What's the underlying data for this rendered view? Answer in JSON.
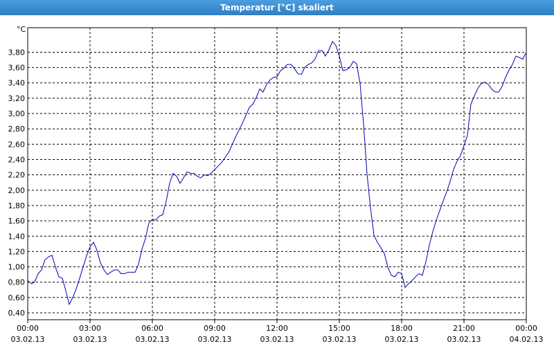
{
  "chart_data": {
    "type": "line",
    "title": "Temperatur [°C] skaliert",
    "y_label": "°C",
    "x": [
      0,
      0.17,
      0.33,
      0.5,
      0.67,
      0.83,
      1.0,
      1.17,
      1.33,
      1.5,
      1.67,
      1.83,
      2.0,
      2.17,
      2.33,
      2.5,
      2.67,
      2.83,
      3.0,
      3.17,
      3.33,
      3.5,
      3.67,
      3.83,
      4.0,
      4.17,
      4.33,
      4.5,
      4.67,
      4.83,
      5.0,
      5.17,
      5.33,
      5.5,
      5.67,
      5.83,
      6.0,
      6.17,
      6.33,
      6.5,
      6.67,
      6.83,
      7.0,
      7.17,
      7.33,
      7.5,
      7.67,
      7.83,
      8.0,
      8.17,
      8.33,
      8.5,
      8.67,
      8.83,
      9.0,
      9.33,
      9.67,
      10.0,
      10.33,
      10.67,
      10.83,
      11.0,
      11.17,
      11.33,
      11.5,
      11.67,
      11.83,
      12.0,
      12.17,
      12.33,
      12.5,
      12.67,
      12.83,
      13.0,
      13.17,
      13.33,
      13.5,
      13.67,
      13.83,
      14.0,
      14.17,
      14.33,
      14.5,
      14.67,
      14.83,
      15.0,
      15.17,
      15.33,
      15.5,
      15.67,
      15.83,
      16.0,
      16.17,
      16.33,
      16.5,
      16.67,
      16.83,
      17.0,
      17.17,
      17.33,
      17.5,
      17.67,
      17.83,
      18.0,
      18.17,
      18.33,
      18.5,
      18.67,
      18.83,
      19.0,
      19.17,
      19.33,
      19.5,
      19.67,
      19.83,
      20.0,
      20.17,
      20.33,
      20.5,
      20.67,
      20.83,
      21.0,
      21.17,
      21.33,
      21.5,
      21.67,
      21.83,
      22.0,
      22.17,
      22.33,
      22.5,
      22.67,
      22.83,
      23.0,
      23.17,
      23.33,
      23.5,
      23.67,
      23.83,
      24.0
    ],
    "series": [
      {
        "color": "#0000b0",
        "values": [
          0.82,
          0.78,
          0.8,
          0.91,
          0.96,
          1.09,
          1.13,
          1.15,
          1.0,
          0.87,
          0.85,
          0.69,
          0.51,
          0.6,
          0.71,
          0.85,
          1.0,
          1.14,
          1.26,
          1.32,
          1.22,
          1.05,
          0.96,
          0.9,
          0.93,
          0.96,
          0.96,
          0.91,
          0.91,
          0.93,
          0.93,
          0.93,
          1.03,
          1.23,
          1.37,
          1.57,
          1.62,
          1.61,
          1.66,
          1.68,
          1.86,
          2.09,
          2.22,
          2.18,
          2.09,
          2.16,
          2.24,
          2.22,
          2.22,
          2.18,
          2.16,
          2.2,
          2.19,
          2.22,
          2.27,
          2.36,
          2.49,
          2.69,
          2.87,
          3.08,
          3.12,
          3.21,
          3.32,
          3.28,
          3.38,
          3.44,
          3.47,
          3.48,
          3.56,
          3.59,
          3.64,
          3.64,
          3.59,
          3.52,
          3.51,
          3.6,
          3.64,
          3.66,
          3.71,
          3.82,
          3.82,
          3.75,
          3.83,
          3.94,
          3.89,
          3.75,
          3.56,
          3.57,
          3.6,
          3.68,
          3.65,
          3.39,
          2.85,
          2.22,
          1.77,
          1.41,
          1.32,
          1.25,
          1.17,
          1.0,
          0.89,
          0.87,
          0.93,
          0.91,
          0.73,
          0.78,
          0.82,
          0.87,
          0.91,
          0.89,
          1.07,
          1.28,
          1.46,
          1.61,
          1.73,
          1.86,
          1.98,
          2.11,
          2.27,
          2.38,
          2.45,
          2.58,
          2.72,
          3.12,
          3.23,
          3.33,
          3.39,
          3.41,
          3.38,
          3.32,
          3.28,
          3.28,
          3.35,
          3.47,
          3.57,
          3.64,
          3.75,
          3.73,
          3.71,
          3.8
        ]
      }
    ],
    "xlim": [
      0,
      24
    ],
    "xticks": [
      {
        "value": 0,
        "label": "00:00"
      },
      {
        "value": 3,
        "label": "03:00"
      },
      {
        "value": 6,
        "label": "06:00"
      },
      {
        "value": 9,
        "label": "09:00"
      },
      {
        "value": 12,
        "label": "12:00"
      },
      {
        "value": 15,
        "label": "15:00"
      },
      {
        "value": 18,
        "label": "18:00"
      },
      {
        "value": 21,
        "label": "21:00"
      },
      {
        "value": 24,
        "label": "00:00"
      }
    ],
    "xtick_dates": [
      "03.02.13",
      "03.02.13",
      "03.02.13",
      "03.02.13",
      "03.02.13",
      "03.02.13",
      "03.02.13",
      "03.02.13",
      "04.02.13"
    ],
    "ylim": [
      0.31,
      4.12
    ],
    "yticks": [
      {
        "value": 0.4,
        "label": "0,40"
      },
      {
        "value": 0.6,
        "label": "0,60"
      },
      {
        "value": 0.8,
        "label": "0,80"
      },
      {
        "value": 1.0,
        "label": "1,00"
      },
      {
        "value": 1.2,
        "label": "1,20"
      },
      {
        "value": 1.4,
        "label": "1,40"
      },
      {
        "value": 1.6,
        "label": "1,60"
      },
      {
        "value": 1.8,
        "label": "1,80"
      },
      {
        "value": 2.0,
        "label": "2,00"
      },
      {
        "value": 2.2,
        "label": "2,20"
      },
      {
        "value": 2.4,
        "label": "2,40"
      },
      {
        "value": 2.6,
        "label": "2,60"
      },
      {
        "value": 2.8,
        "label": "2,80"
      },
      {
        "value": 3.0,
        "label": "3,00"
      },
      {
        "value": 3.2,
        "label": "3,20"
      },
      {
        "value": 3.4,
        "label": "3,40"
      },
      {
        "value": 3.6,
        "label": "3,60"
      },
      {
        "value": 3.8,
        "label": "3,80"
      }
    ],
    "grid": true
  }
}
